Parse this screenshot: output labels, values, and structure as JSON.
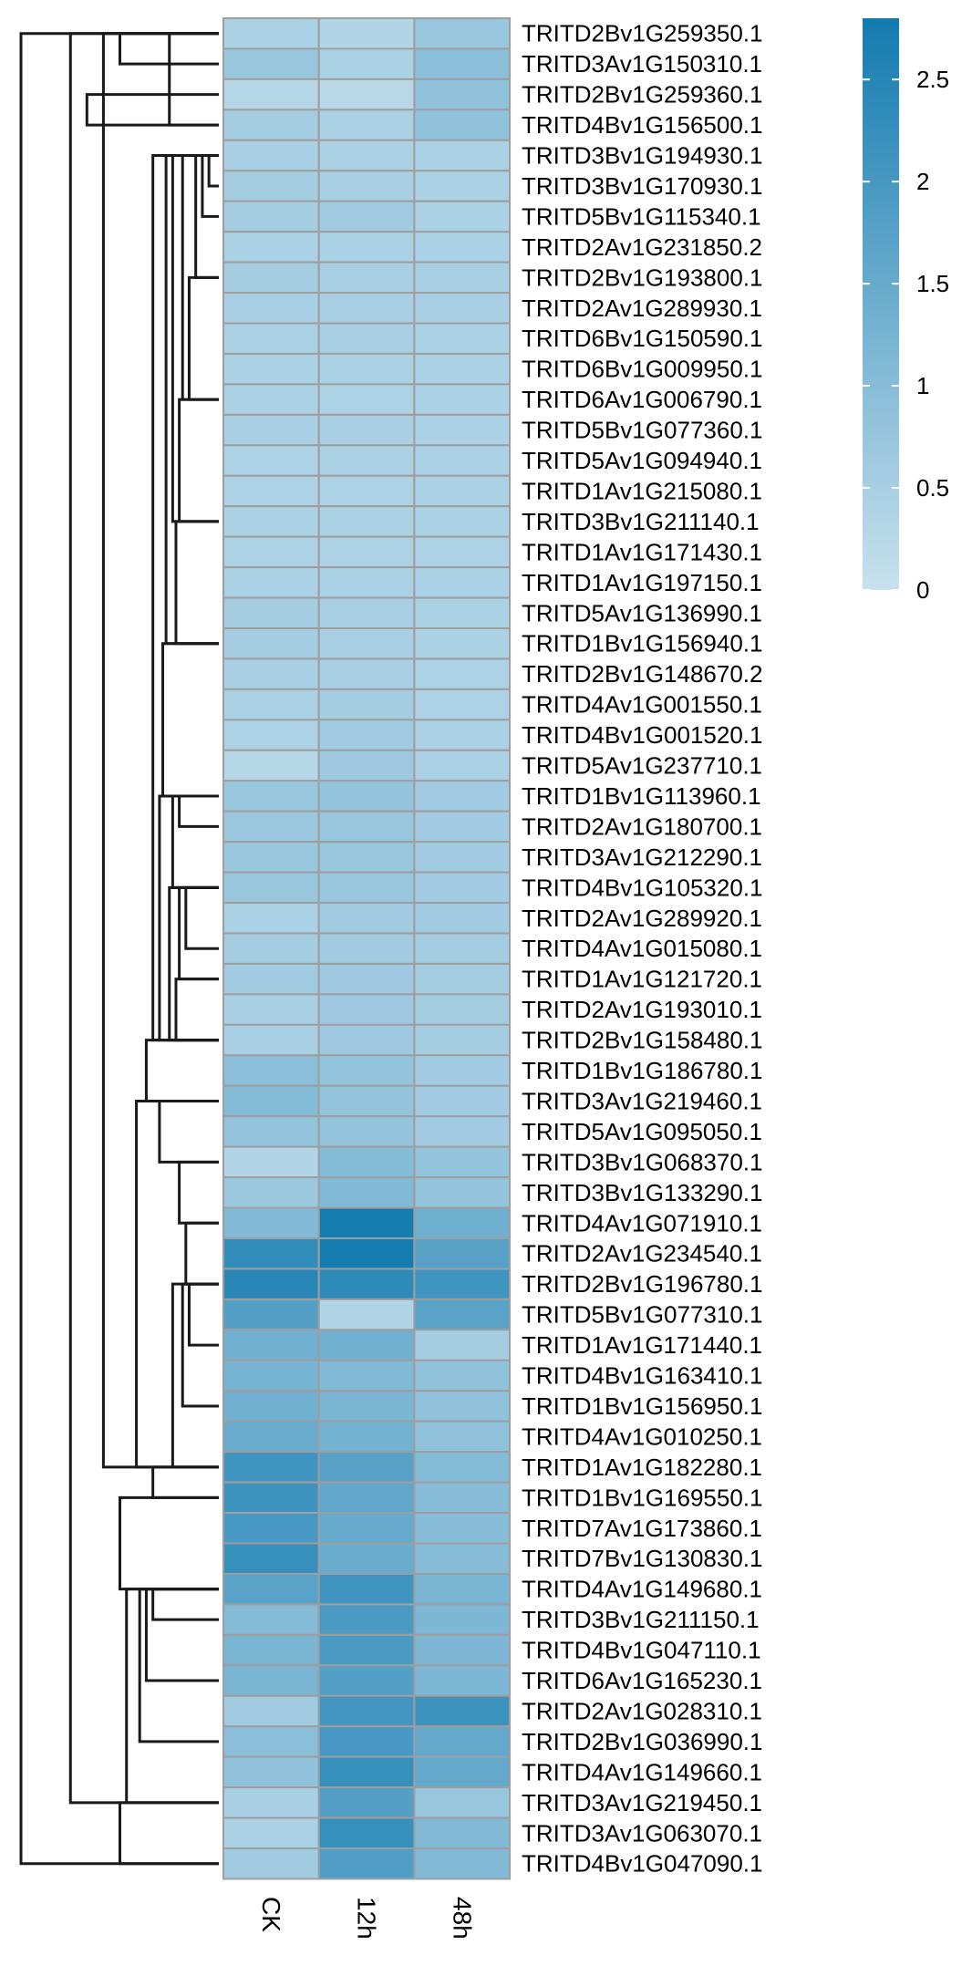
{
  "chart_data": {
    "type": "heatmap",
    "title": "",
    "xlabel": "",
    "ylabel": "",
    "columns": [
      "CK",
      "12h",
      "48h"
    ],
    "rows": [
      "TRITD2Bv1G259350.1",
      "TRITD3Av1G150310.1",
      "TRITD2Bv1G259360.1",
      "TRITD4Bv1G156500.1",
      "TRITD3Bv1G194930.1",
      "TRITD3Bv1G170930.1",
      "TRITD5Bv1G115340.1",
      "TRITD2Av1G231850.2",
      "TRITD2Bv1G193800.1",
      "TRITD2Av1G289930.1",
      "TRITD6Bv1G150590.1",
      "TRITD6Bv1G009950.1",
      "TRITD6Av1G006790.1",
      "TRITD5Bv1G077360.1",
      "TRITD5Av1G094940.1",
      "TRITD1Av1G215080.1",
      "TRITD3Bv1G211140.1",
      "TRITD1Av1G171430.1",
      "TRITD1Av1G197150.1",
      "TRITD5Av1G136990.1",
      "TRITD1Bv1G156940.1",
      "TRITD2Bv1G148670.2",
      "TRITD4Av1G001550.1",
      "TRITD4Bv1G001520.1",
      "TRITD5Av1G237710.1",
      "TRITD1Bv1G113960.1",
      "TRITD2Av1G180700.1",
      "TRITD3Av1G212290.1",
      "TRITD4Bv1G105320.1",
      "TRITD2Av1G289920.1",
      "TRITD4Av1G015080.1",
      "TRITD1Av1G121720.1",
      "TRITD2Av1G193010.1",
      "TRITD2Bv1G158480.1",
      "TRITD1Bv1G186780.1",
      "TRITD3Av1G219460.1",
      "TRITD5Av1G095050.1",
      "TRITD3Bv1G068370.1",
      "TRITD3Bv1G133290.1",
      "TRITD4Av1G071910.1",
      "TRITD2Av1G234540.1",
      "TRITD2Bv1G196780.1",
      "TRITD5Bv1G077310.1",
      "TRITD1Av1G171440.1",
      "TRITD4Bv1G163410.1",
      "TRITD1Bv1G156950.1",
      "TRITD4Av1G010250.1",
      "TRITD1Av1G182280.1",
      "TRITD1Bv1G169550.1",
      "TRITD7Av1G173860.1",
      "TRITD7Bv1G130830.1",
      "TRITD4Av1G149680.1",
      "TRITD3Bv1G211150.1",
      "TRITD4Bv1G047110.1",
      "TRITD6Av1G165230.1",
      "TRITD2Av1G028310.1",
      "TRITD2Bv1G036990.1",
      "TRITD4Av1G149660.1",
      "TRITD3Av1G219450.1",
      "TRITD3Av1G063070.1",
      "TRITD4Bv1G047090.1"
    ],
    "values": [
      [
        0.45,
        0.35,
        0.75
      ],
      [
        0.75,
        0.45,
        0.95
      ],
      [
        0.3,
        0.25,
        0.85
      ],
      [
        0.55,
        0.45,
        0.85
      ],
      [
        0.5,
        0.45,
        0.45
      ],
      [
        0.55,
        0.5,
        0.45
      ],
      [
        0.55,
        0.6,
        0.45
      ],
      [
        0.45,
        0.45,
        0.45
      ],
      [
        0.55,
        0.5,
        0.5
      ],
      [
        0.5,
        0.5,
        0.5
      ],
      [
        0.45,
        0.5,
        0.45
      ],
      [
        0.45,
        0.45,
        0.45
      ],
      [
        0.45,
        0.4,
        0.45
      ],
      [
        0.5,
        0.5,
        0.45
      ],
      [
        0.4,
        0.45,
        0.45
      ],
      [
        0.4,
        0.4,
        0.45
      ],
      [
        0.45,
        0.45,
        0.45
      ],
      [
        0.4,
        0.4,
        0.4
      ],
      [
        0.45,
        0.45,
        0.45
      ],
      [
        0.55,
        0.5,
        0.45
      ],
      [
        0.55,
        0.5,
        0.45
      ],
      [
        0.5,
        0.5,
        0.4
      ],
      [
        0.45,
        0.55,
        0.4
      ],
      [
        0.4,
        0.6,
        0.45
      ],
      [
        0.3,
        0.65,
        0.45
      ],
      [
        0.75,
        0.8,
        0.6
      ],
      [
        0.7,
        0.75,
        0.6
      ],
      [
        0.75,
        0.75,
        0.6
      ],
      [
        0.75,
        0.75,
        0.6
      ],
      [
        0.45,
        0.6,
        0.6
      ],
      [
        0.55,
        0.6,
        0.55
      ],
      [
        0.6,
        0.65,
        0.55
      ],
      [
        0.5,
        0.65,
        0.55
      ],
      [
        0.5,
        0.65,
        0.55
      ],
      [
        0.95,
        0.8,
        0.6
      ],
      [
        1.05,
        0.8,
        0.6
      ],
      [
        0.8,
        0.8,
        0.6
      ],
      [
        0.35,
        1.05,
        0.8
      ],
      [
        0.7,
        1.1,
        0.8
      ],
      [
        1.1,
        2.75,
        1.4
      ],
      [
        2.3,
        2.75,
        1.75
      ],
      [
        2.45,
        2.4,
        2.1
      ],
      [
        1.8,
        0.35,
        1.7
      ],
      [
        1.35,
        1.35,
        0.55
      ],
      [
        1.25,
        1.1,
        0.85
      ],
      [
        1.35,
        1.2,
        0.85
      ],
      [
        1.45,
        1.3,
        0.85
      ],
      [
        2.1,
        1.75,
        1.05
      ],
      [
        2.15,
        1.6,
        1.0
      ],
      [
        2.0,
        1.5,
        1.0
      ],
      [
        2.25,
        1.45,
        1.0
      ],
      [
        1.7,
        2.1,
        1.2
      ],
      [
        1.05,
        1.95,
        1.15
      ],
      [
        1.2,
        1.95,
        1.15
      ],
      [
        1.2,
        1.8,
        1.15
      ],
      [
        0.6,
        2.05,
        2.15
      ],
      [
        0.95,
        2.0,
        1.55
      ],
      [
        0.85,
        2.25,
        1.55
      ],
      [
        0.5,
        1.8,
        0.75
      ],
      [
        0.45,
        2.25,
        1.1
      ],
      [
        0.6,
        1.85,
        1.1
      ]
    ],
    "row_dendrogram": [
      [
        0,
        3,
        0.15
      ],
      [
        0,
        1,
        0.3
      ],
      [
        2,
        3,
        0.4
      ],
      [
        4,
        5,
        0.03
      ],
      [
        4,
        6,
        0.05
      ],
      [
        4,
        8,
        0.07
      ],
      [
        8,
        12,
        0.09
      ],
      [
        4,
        12,
        0.11
      ],
      [
        12,
        16,
        0.12
      ],
      [
        4,
        16,
        0.14
      ],
      [
        16,
        20,
        0.13
      ],
      [
        4,
        20,
        0.16
      ],
      [
        20,
        25,
        0.17
      ],
      [
        25,
        26,
        0.12
      ],
      [
        25,
        28,
        0.14
      ],
      [
        28,
        30,
        0.1
      ],
      [
        28,
        31,
        0.12
      ],
      [
        31,
        33,
        0.13
      ],
      [
        28,
        33,
        0.15
      ],
      [
        25,
        33,
        0.18
      ],
      [
        4,
        33,
        0.2
      ],
      [
        33,
        35,
        0.22
      ],
      [
        35,
        37,
        0.18
      ],
      [
        37,
        39,
        0.12
      ],
      [
        39,
        41,
        0.1
      ],
      [
        41,
        43,
        0.09
      ],
      [
        41,
        45,
        0.11
      ],
      [
        41,
        47,
        0.14
      ],
      [
        35,
        47,
        0.25
      ],
      [
        0,
        47,
        0.35
      ],
      [
        47,
        48,
        0.2
      ],
      [
        48,
        51,
        0.3
      ],
      [
        51,
        52,
        0.2
      ],
      [
        51,
        54,
        0.22
      ],
      [
        51,
        56,
        0.24
      ],
      [
        51,
        58,
        0.28
      ],
      [
        0,
        58,
        0.45
      ],
      [
        58,
        60,
        0.3
      ],
      [
        0,
        60,
        0.6
      ]
    ],
    "color_scale": {
      "min": 0,
      "max": 2.8,
      "low_color": "#c8e1ee",
      "high_color": "#137bb0",
      "ticks": [
        "0",
        "0.5",
        "1",
        "1.5",
        "2",
        "2.5"
      ],
      "tick_values": [
        0,
        0.5,
        1,
        1.5,
        2,
        2.5
      ]
    },
    "grid_color": "#9e9e9e",
    "dendrogram_color": "#1a1a1a"
  }
}
